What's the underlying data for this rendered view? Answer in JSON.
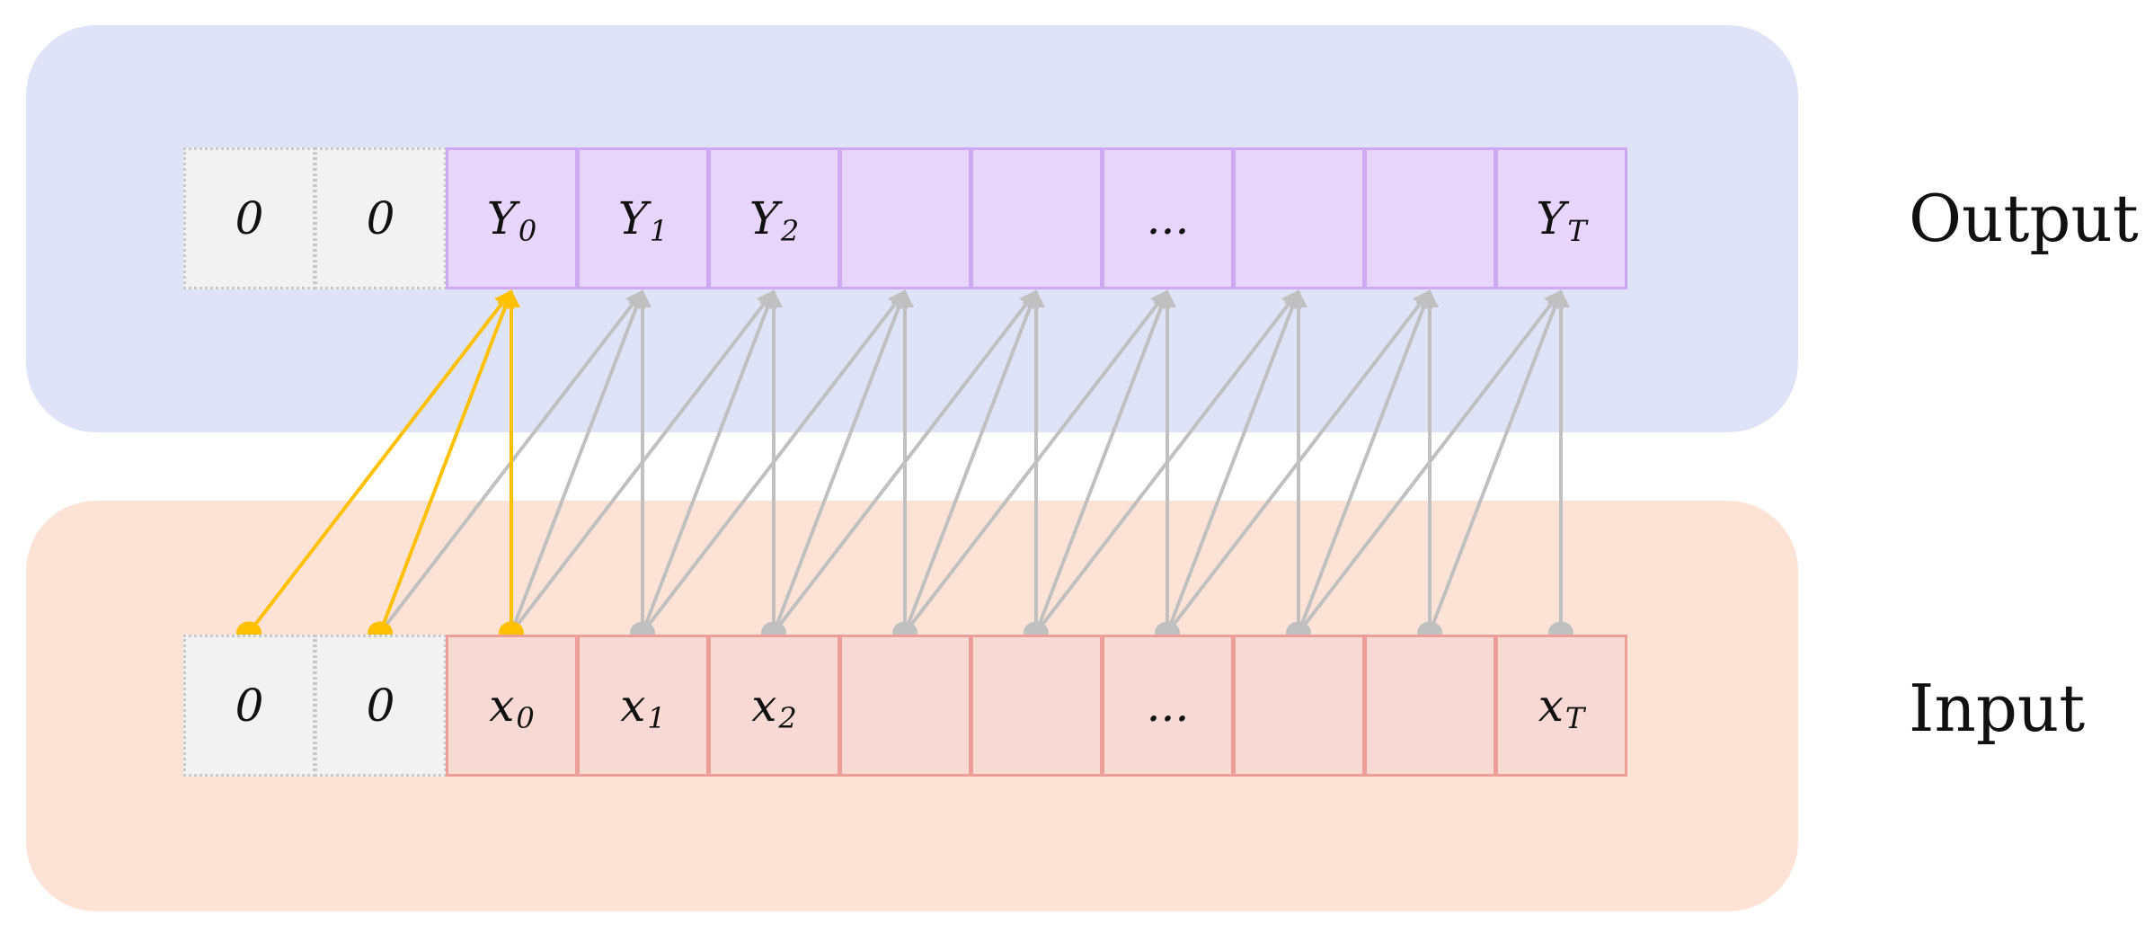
{
  "colors": {
    "output_panel": "#dfe3f8",
    "input_panel": "#fde3d6",
    "output_cell_fill": "#e8d5fb",
    "output_cell_border": "#cfa8f2",
    "input_cell_fill": "#f8d9d4",
    "input_cell_border": "#eb9f98",
    "padding_cell_fill": "#f2f2f2",
    "highlight_arrow": "#ffc000",
    "dependency_arrow": "#c0c0c0"
  },
  "output": {
    "label": "Output",
    "cells": [
      {
        "kind": "pad",
        "base": "0",
        "sub": ""
      },
      {
        "kind": "pad",
        "base": "0",
        "sub": ""
      },
      {
        "kind": "data",
        "base": "Y",
        "sub": "0"
      },
      {
        "kind": "data",
        "base": "Y",
        "sub": "1"
      },
      {
        "kind": "data",
        "base": "Y",
        "sub": "2"
      },
      {
        "kind": "data",
        "base": "",
        "sub": ""
      },
      {
        "kind": "data",
        "base": "",
        "sub": ""
      },
      {
        "kind": "data",
        "base": "...",
        "sub": ""
      },
      {
        "kind": "data",
        "base": "",
        "sub": ""
      },
      {
        "kind": "data",
        "base": "",
        "sub": ""
      },
      {
        "kind": "data",
        "base": "Y",
        "sub": "T"
      }
    ]
  },
  "input": {
    "label": "Input",
    "cells": [
      {
        "kind": "pad",
        "base": "0",
        "sub": ""
      },
      {
        "kind": "pad",
        "base": "0",
        "sub": ""
      },
      {
        "kind": "data",
        "base": "x",
        "sub": "0"
      },
      {
        "kind": "data",
        "base": "x",
        "sub": "1"
      },
      {
        "kind": "data",
        "base": "x",
        "sub": "2"
      },
      {
        "kind": "data",
        "base": "",
        "sub": ""
      },
      {
        "kind": "data",
        "base": "",
        "sub": ""
      },
      {
        "kind": "data",
        "base": "...",
        "sub": ""
      },
      {
        "kind": "data",
        "base": "",
        "sub": ""
      },
      {
        "kind": "data",
        "base": "",
        "sub": ""
      },
      {
        "kind": "data",
        "base": "x",
        "sub": "T"
      }
    ]
  },
  "connections": {
    "kernel_size": 3,
    "highlighted_output": 0
  }
}
